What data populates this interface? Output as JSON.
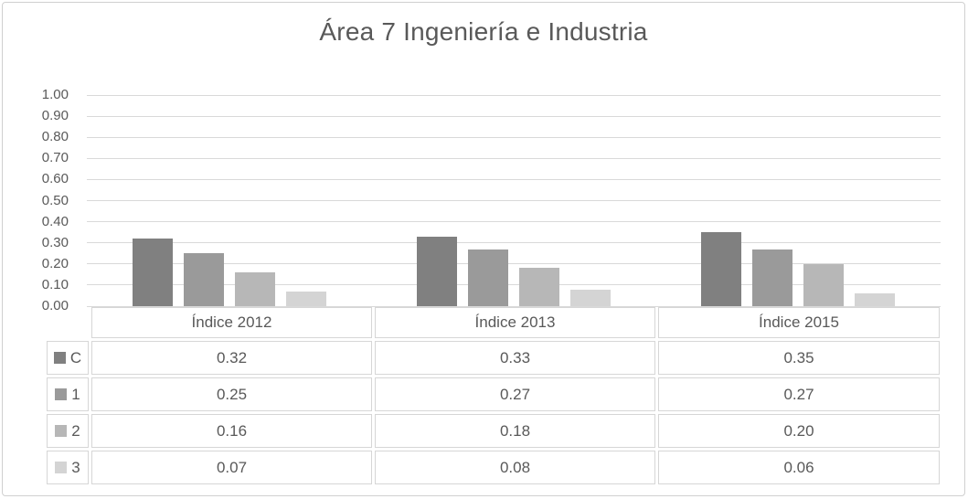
{
  "chart_data": {
    "type": "bar",
    "title": "Área 7 Ingeniería e Industria",
    "categories": [
      "Índice 2012",
      "Índice 2013",
      "Índice 2015"
    ],
    "series": [
      {
        "name": "C",
        "color": "#808080",
        "values": [
          "0.32",
          "0.33",
          "0.35"
        ]
      },
      {
        "name": "1",
        "color": "#9a9a9a",
        "values": [
          "0.25",
          "0.27",
          "0.27"
        ]
      },
      {
        "name": "2",
        "color": "#b7b7b7",
        "values": [
          "0.16",
          "0.18",
          "0.20"
        ]
      },
      {
        "name": "3",
        "color": "#d4d4d4",
        "values": [
          "0.07",
          "0.08",
          "0.06"
        ]
      }
    ],
    "y_axis": {
      "min": 0,
      "max": 1.0,
      "tick_step": 0.1,
      "ticks": [
        "1.00",
        "0.90",
        "0.80",
        "0.70",
        "0.60",
        "0.50",
        "0.40",
        "0.30",
        "0.20",
        "0.10",
        "0.00"
      ]
    },
    "grid": "horizontal",
    "legend_position": "data-table left column",
    "data_table_shown": true,
    "colors": {
      "text": "#595959",
      "gridline": "#d9d9d9",
      "table_border": "#d6d6d6",
      "frame_border": "#d0d0d0"
    }
  }
}
